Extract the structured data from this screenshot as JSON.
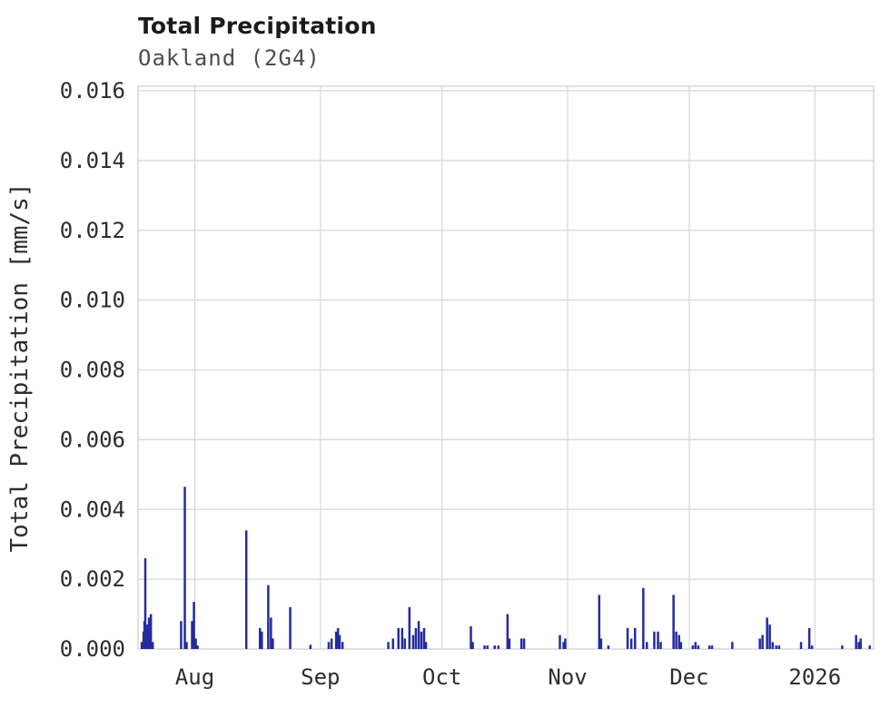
{
  "colors": {
    "bar": "#232c9e",
    "grid": "#d7d7d7",
    "tick_text": "#2e2e2e",
    "title_text": "#1b1b1b",
    "subtitle_text": "#4d4d4d",
    "plot_background": "#ffffff"
  },
  "chart_data": {
    "type": "bar",
    "title": "Total Precipitation",
    "subtitle": "Oakland (2G4)",
    "xlabel": "",
    "ylabel": "Total Precipitation [mm/s]",
    "ylim": [
      0,
      0.016
    ],
    "grid": "on",
    "legend": "none",
    "x_start": "2025-07-18",
    "x_end": "2026-01-15T12:00",
    "yticks": [
      0,
      0.002,
      0.004,
      0.006,
      0.008,
      0.01,
      0.012,
      0.014,
      0.016
    ],
    "ytick_labels": [
      "0.000",
      "0.002",
      "0.004",
      "0.006",
      "0.008",
      "0.010",
      "0.012",
      "0.014",
      "0.016"
    ],
    "xticks": [
      {
        "date": "2025-08-01",
        "label": "Aug"
      },
      {
        "date": "2025-09-01",
        "label": "Sep"
      },
      {
        "date": "2025-10-01",
        "label": "Oct"
      },
      {
        "date": "2025-11-01",
        "label": "Nov"
      },
      {
        "date": "2025-12-01",
        "label": "Dec"
      },
      {
        "date": "2026-01-01",
        "label": "2026"
      }
    ],
    "points": [
      {
        "date": "2025-07-18T22:00",
        "value": 0.0002
      },
      {
        "date": "2025-07-19T09:00",
        "value": 0.0005
      },
      {
        "date": "2025-07-19T14:00",
        "value": 0.0008
      },
      {
        "date": "2025-07-19T19:00",
        "value": 0.0026
      },
      {
        "date": "2025-07-20T06:00",
        "value": 0.0007
      },
      {
        "date": "2025-07-20T17:00",
        "value": 0.0009
      },
      {
        "date": "2025-07-21T04:00",
        "value": 0.001
      },
      {
        "date": "2025-07-21T15:00",
        "value": 0.0002
      },
      {
        "date": "2025-07-28T15:00",
        "value": 0.0008
      },
      {
        "date": "2025-07-29T13:00",
        "value": 0.00465
      },
      {
        "date": "2025-07-30T00:00",
        "value": 0.0002
      },
      {
        "date": "2025-07-31T08:00",
        "value": 0.0008
      },
      {
        "date": "2025-07-31T19:00",
        "value": 0.00135
      },
      {
        "date": "2025-08-01T06:00",
        "value": 0.0003
      },
      {
        "date": "2025-08-01T17:00",
        "value": 0.0001
      },
      {
        "date": "2025-08-13T17:00",
        "value": 0.0034
      },
      {
        "date": "2025-08-17T02:00",
        "value": 0.0006
      },
      {
        "date": "2025-08-17T13:00",
        "value": 0.0005
      },
      {
        "date": "2025-08-19T03:00",
        "value": 0.00183
      },
      {
        "date": "2025-08-19T19:00",
        "value": 0.0009
      },
      {
        "date": "2025-08-20T06:00",
        "value": 0.0003
      },
      {
        "date": "2025-08-24T13:00",
        "value": 0.0012
      },
      {
        "date": "2025-08-29T13:00",
        "value": 0.00012
      },
      {
        "date": "2025-09-03T01:00",
        "value": 0.0002
      },
      {
        "date": "2025-09-03T18:00",
        "value": 0.0003
      },
      {
        "date": "2025-09-04T21:00",
        "value": 0.0005
      },
      {
        "date": "2025-09-05T08:00",
        "value": 0.0006
      },
      {
        "date": "2025-09-05T18:00",
        "value": 0.0004
      },
      {
        "date": "2025-09-06T11:00",
        "value": 0.0002
      },
      {
        "date": "2025-09-17T18:00",
        "value": 0.0002
      },
      {
        "date": "2025-09-18T22:00",
        "value": 0.0003
      },
      {
        "date": "2025-09-20T06:00",
        "value": 0.0006
      },
      {
        "date": "2025-09-21T04:00",
        "value": 0.0006
      },
      {
        "date": "2025-09-21T20:00",
        "value": 0.0003
      },
      {
        "date": "2025-09-22T23:00",
        "value": 0.0012
      },
      {
        "date": "2025-09-23T21:00",
        "value": 0.0004
      },
      {
        "date": "2025-09-24T13:00",
        "value": 0.0006
      },
      {
        "date": "2025-09-25T06:00",
        "value": 0.0008
      },
      {
        "date": "2025-09-25T22:00",
        "value": 0.0005
      },
      {
        "date": "2025-09-26T14:00",
        "value": 0.0006
      },
      {
        "date": "2025-09-27T01:00",
        "value": 0.0002
      },
      {
        "date": "2025-10-08T03:00",
        "value": 0.00065
      },
      {
        "date": "2025-10-08T14:00",
        "value": 0.0002
      },
      {
        "date": "2025-10-11T12:00",
        "value": 0.0001
      },
      {
        "date": "2025-10-12T05:00",
        "value": 0.0001
      },
      {
        "date": "2025-10-14T00:00",
        "value": 0.0001
      },
      {
        "date": "2025-10-14T22:00",
        "value": 0.0001
      },
      {
        "date": "2025-10-17T04:00",
        "value": 0.001
      },
      {
        "date": "2025-10-17T15:00",
        "value": 0.0003
      },
      {
        "date": "2025-10-20T14:00",
        "value": 0.0003
      },
      {
        "date": "2025-10-21T06:00",
        "value": 0.0003
      },
      {
        "date": "2025-10-30T02:00",
        "value": 0.0004
      },
      {
        "date": "2025-10-31T00:00",
        "value": 0.0002
      },
      {
        "date": "2025-10-31T10:00",
        "value": 0.0003
      },
      {
        "date": "2025-11-08T19:00",
        "value": 0.00155
      },
      {
        "date": "2025-11-09T06:00",
        "value": 0.0003
      },
      {
        "date": "2025-11-11T01:00",
        "value": 0.0001
      },
      {
        "date": "2025-11-15T19:00",
        "value": 0.0006
      },
      {
        "date": "2025-11-16T17:00",
        "value": 0.0003
      },
      {
        "date": "2025-11-17T15:00",
        "value": 0.0006
      },
      {
        "date": "2025-11-19T16:00",
        "value": 0.00175
      },
      {
        "date": "2025-11-20T13:00",
        "value": 0.0002
      },
      {
        "date": "2025-11-22T09:00",
        "value": 0.0005
      },
      {
        "date": "2025-11-23T07:00",
        "value": 0.0005
      },
      {
        "date": "2025-11-23T23:00",
        "value": 0.0002
      },
      {
        "date": "2025-11-27T03:00",
        "value": 0.00155
      },
      {
        "date": "2025-11-27T19:00",
        "value": 0.0005
      },
      {
        "date": "2025-11-28T12:00",
        "value": 0.0004
      },
      {
        "date": "2025-11-28T23:00",
        "value": 0.0002
      },
      {
        "date": "2025-12-01T21:00",
        "value": 0.0001
      },
      {
        "date": "2025-12-02T13:00",
        "value": 0.0002
      },
      {
        "date": "2025-12-03T06:00",
        "value": 0.0001
      },
      {
        "date": "2025-12-05T23:00",
        "value": 0.0001
      },
      {
        "date": "2025-12-06T15:00",
        "value": 0.0001
      },
      {
        "date": "2025-12-11T15:00",
        "value": 0.0002
      },
      {
        "date": "2025-12-18T10:00",
        "value": 0.0003
      },
      {
        "date": "2025-12-19T02:00",
        "value": 0.0004
      },
      {
        "date": "2025-12-20T05:00",
        "value": 0.0009
      },
      {
        "date": "2025-12-20T21:00",
        "value": 0.0007
      },
      {
        "date": "2025-12-21T14:00",
        "value": 0.0002
      },
      {
        "date": "2025-12-22T11:00",
        "value": 0.0001
      },
      {
        "date": "2025-12-23T04:00",
        "value": 0.0001
      },
      {
        "date": "2025-12-28T14:00",
        "value": 0.0002
      },
      {
        "date": "2025-12-30T15:00",
        "value": 0.0006
      },
      {
        "date": "2025-12-31T07:00",
        "value": 0.0001
      },
      {
        "date": "2026-01-07T18:00",
        "value": 0.0001
      },
      {
        "date": "2026-01-11T04:00",
        "value": 0.0004
      },
      {
        "date": "2026-01-11T20:00",
        "value": 0.0002
      },
      {
        "date": "2026-01-12T07:00",
        "value": 0.0003
      },
      {
        "date": "2026-01-14T13:00",
        "value": 0.0001
      }
    ]
  }
}
